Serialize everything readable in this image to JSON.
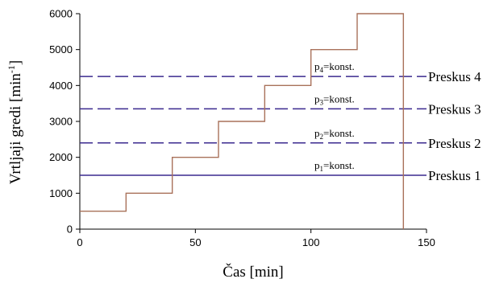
{
  "chart_data": {
    "type": "line",
    "xlabel": "Čas [min]",
    "ylabel_main": "Vrtljaji gredi [min",
    "ylabel_sup": "-1",
    "ylabel_end": "]",
    "xlim": [
      0,
      150
    ],
    "ylim": [
      0,
      6000
    ],
    "x_ticks": [
      "0",
      "50",
      "100",
      "150"
    ],
    "y_ticks": [
      "0",
      "1000",
      "2000",
      "3000",
      "4000",
      "5000",
      "6000"
    ],
    "grid": false,
    "series": [
      {
        "color": "#a9715a",
        "style": "step",
        "x": [
          0,
          20,
          20,
          40,
          40,
          60,
          60,
          80,
          80,
          100,
          100,
          120,
          120,
          140,
          140
        ],
        "y": [
          500,
          500,
          1000,
          1000,
          2000,
          2000,
          3000,
          3000,
          4000,
          4000,
          5000,
          5000,
          6000,
          6000,
          0
        ]
      }
    ],
    "reference_lines": [
      {
        "y": 1500,
        "label": "Preskus 1",
        "note_prefix": "p",
        "note_sub": "1",
        "note_suffix": "=konst.",
        "dash": "solid",
        "color": "#3b2a8f"
      },
      {
        "y": 2400,
        "label": "Preskus 2",
        "note_prefix": "p",
        "note_sub": "2",
        "note_suffix": "=konst.",
        "dash": "dashed",
        "color": "#3b2a8f"
      },
      {
        "y": 3350,
        "label": "Preskus 3",
        "note_prefix": "p",
        "note_sub": "3",
        "note_suffix": "=konst.",
        "dash": "dashed",
        "color": "#3b2a8f"
      },
      {
        "y": 4250,
        "label": "Preskus 4",
        "note_prefix": "p",
        "note_sub": "4",
        "note_suffix": "=konst.",
        "dash": "dashed",
        "color": "#3b2a8f"
      }
    ]
  }
}
